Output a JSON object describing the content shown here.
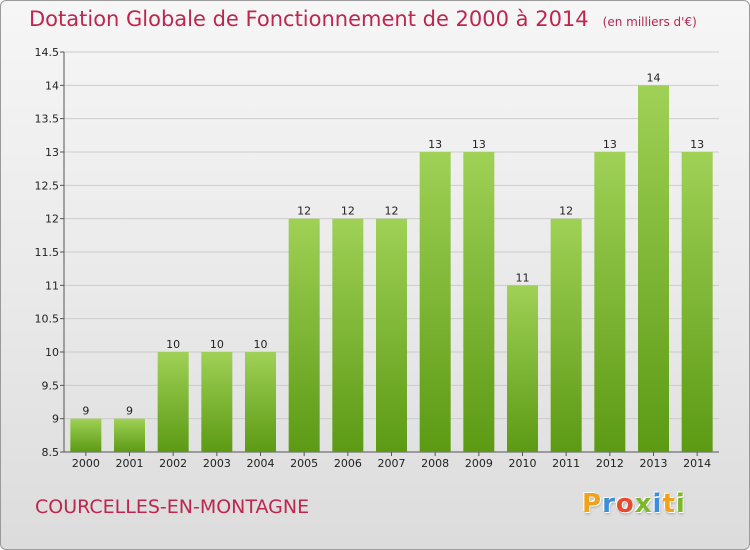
{
  "title": {
    "main": "Dotation Globale de Fonctionnement de 2000 à 2014",
    "unit": "(en milliers d'€)"
  },
  "commune": "COURCELLES-EN-MONTAGNE",
  "logo": {
    "letters": [
      "P",
      "r",
      "o",
      "x",
      "i",
      "t",
      "i"
    ],
    "colors": [
      "#f0a21d",
      "#3a8fd8",
      "#e84a2c",
      "#7ab82a",
      "#3a8fd8",
      "#f0a21d",
      "#7ab82a"
    ]
  },
  "colors": {
    "title": "#c0264d",
    "bar_top": "#9fd156",
    "bar_bottom": "#5c9a14",
    "grid": "#cccccc"
  },
  "chart_data": {
    "type": "bar",
    "categories": [
      "2000",
      "2001",
      "2002",
      "2003",
      "2004",
      "2005",
      "2006",
      "2007",
      "2008",
      "2009",
      "2010",
      "2011",
      "2012",
      "2013",
      "2014"
    ],
    "values": [
      9,
      9,
      10,
      10,
      10,
      12,
      12,
      12,
      13,
      13,
      11,
      12,
      13,
      14,
      13
    ],
    "labels": [
      "9",
      "9",
      "10",
      "10",
      "10",
      "12",
      "12",
      "12",
      "13",
      "13",
      "11",
      "12",
      "13",
      "14",
      "13"
    ],
    "ylim": [
      8.5,
      14.5
    ],
    "yticks": [
      8.5,
      9,
      9.5,
      10,
      10.5,
      11,
      11.5,
      12,
      12.5,
      13,
      13.5,
      14,
      14.5
    ],
    "ytick_labels": [
      "8.5",
      "9",
      "9.5",
      "10",
      "10.5",
      "11",
      "11.5",
      "12",
      "12.5",
      "13",
      "13.5",
      "14",
      "14.5"
    ],
    "grid": true
  }
}
